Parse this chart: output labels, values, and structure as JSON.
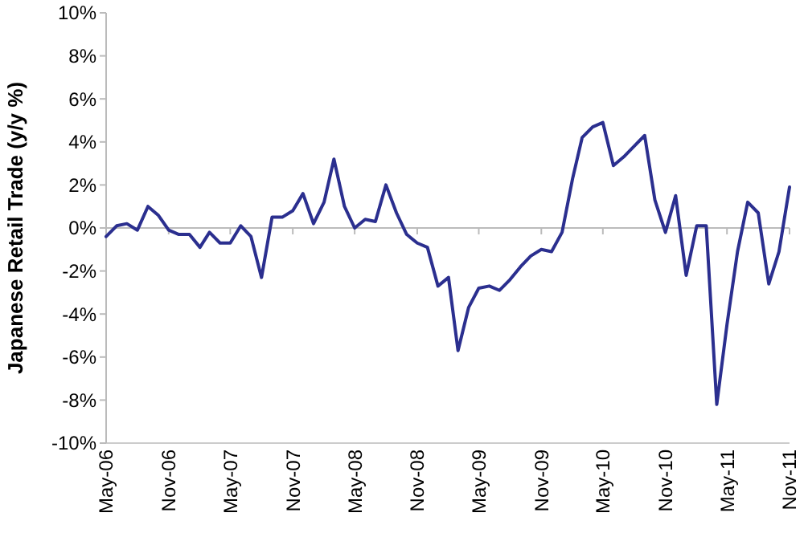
{
  "chart_data": {
    "type": "line",
    "ylabel": "Japanese Retail Trade (y/y %)",
    "x": [
      "2006-05",
      "2006-06",
      "2006-07",
      "2006-08",
      "2006-09",
      "2006-10",
      "2006-11",
      "2006-12",
      "2007-01",
      "2007-02",
      "2007-03",
      "2007-04",
      "2007-05",
      "2007-06",
      "2007-07",
      "2007-08",
      "2007-09",
      "2007-10",
      "2007-11",
      "2007-12",
      "2008-01",
      "2008-02",
      "2008-03",
      "2008-04",
      "2008-05",
      "2008-06",
      "2008-07",
      "2008-08",
      "2008-09",
      "2008-10",
      "2008-11",
      "2008-12",
      "2009-01",
      "2009-02",
      "2009-03",
      "2009-04",
      "2009-05",
      "2009-06",
      "2009-07",
      "2009-08",
      "2009-09",
      "2009-10",
      "2009-11",
      "2009-12",
      "2010-01",
      "2010-02",
      "2010-03",
      "2010-04",
      "2010-05",
      "2010-06",
      "2010-07",
      "2010-08",
      "2010-09",
      "2010-10",
      "2010-11",
      "2010-12",
      "2011-01",
      "2011-02",
      "2011-03",
      "2011-04",
      "2011-05",
      "2011-06",
      "2011-07",
      "2011-08",
      "2011-09",
      "2011-10",
      "2011-11"
    ],
    "series": [
      {
        "color": "#2b2f8f",
        "values": [
          -0.4,
          0.1,
          0.2,
          -0.1,
          1.0,
          0.6,
          -0.1,
          -0.3,
          -0.3,
          -0.9,
          -0.2,
          -0.7,
          -0.7,
          0.1,
          -0.4,
          -2.3,
          0.5,
          0.5,
          0.8,
          1.6,
          0.2,
          1.2,
          3.2,
          1.0,
          0.0,
          0.4,
          0.3,
          2.0,
          0.7,
          -0.3,
          -0.7,
          -0.9,
          -2.7,
          -2.3,
          -5.7,
          -3.7,
          -2.8,
          -2.7,
          -2.9,
          -2.4,
          -1.8,
          -1.3,
          -1.0,
          -1.1,
          -0.2,
          2.3,
          4.2,
          4.7,
          4.9,
          2.9,
          3.3,
          3.8,
          4.3,
          1.3,
          -0.2,
          1.5,
          -2.2,
          0.1,
          0.1,
          -8.2,
          -4.5,
          -1.1,
          1.2,
          0.7,
          -2.6,
          -1.1,
          1.9
        ]
      }
    ],
    "xlim": [
      "2006-05",
      "2011-11"
    ],
    "xticks": [
      {
        "value": "2006-05",
        "label": "May-06"
      },
      {
        "value": "2006-11",
        "label": "Nov-06"
      },
      {
        "value": "2007-05",
        "label": "May-07"
      },
      {
        "value": "2007-11",
        "label": "Nov-07"
      },
      {
        "value": "2008-05",
        "label": "May-08"
      },
      {
        "value": "2008-11",
        "label": "Nov-08"
      },
      {
        "value": "2009-05",
        "label": "May-09"
      },
      {
        "value": "2009-11",
        "label": "Nov-09"
      },
      {
        "value": "2010-05",
        "label": "May-10"
      },
      {
        "value": "2010-11",
        "label": "Nov-10"
      },
      {
        "value": "2011-05",
        "label": "May-11"
      },
      {
        "value": "2011-11",
        "label": "Nov-11"
      }
    ],
    "ylim": [
      -10,
      10
    ],
    "yticks": [
      {
        "value": -10,
        "label": "-10%"
      },
      {
        "value": -8,
        "label": "-8%"
      },
      {
        "value": -6,
        "label": "-6%"
      },
      {
        "value": -4,
        "label": "-4%"
      },
      {
        "value": -2,
        "label": "-2%"
      },
      {
        "value": 0,
        "label": "0%"
      },
      {
        "value": 2,
        "label": "2%"
      },
      {
        "value": 4,
        "label": "4%"
      },
      {
        "value": 6,
        "label": "6%"
      },
      {
        "value": 8,
        "label": "8%"
      },
      {
        "value": 10,
        "label": "10%"
      }
    ],
    "marker": "none",
    "line_style": "solid"
  }
}
